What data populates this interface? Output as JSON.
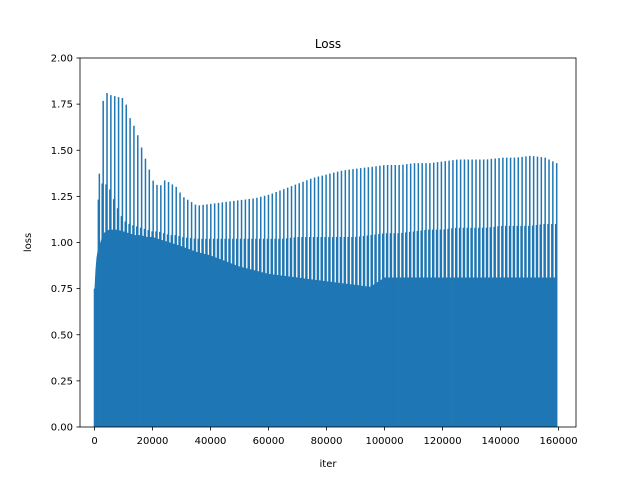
{
  "chart_data": {
    "type": "line",
    "title": "Loss",
    "xlabel": "iter",
    "ylabel": "loss",
    "xlim": [
      -5000,
      166000
    ],
    "ylim": [
      0,
      2.0
    ],
    "x_ticks": [
      0,
      20000,
      40000,
      60000,
      80000,
      100000,
      120000,
      140000,
      160000
    ],
    "x_tick_labels": [
      "0",
      "20000",
      "40000",
      "60000",
      "80000",
      "100000",
      "120000",
      "140000",
      "160000"
    ],
    "y_ticks": [
      0.0,
      0.25,
      0.5,
      0.75,
      1.0,
      1.25,
      1.5,
      1.75,
      2.0
    ],
    "y_tick_labels": [
      "0.00",
      "0.25",
      "0.50",
      "0.75",
      "1.00",
      "1.25",
      "1.50",
      "1.75",
      "2.00"
    ],
    "grid": false,
    "series": [
      {
        "color": "#1f77b4",
        "min_value": 0.0,
        "x_range": [
          0,
          159000
        ],
        "envelope_x": [
          0,
          500,
          1000,
          2000,
          3000,
          5000,
          7500,
          10000,
          12000,
          14000,
          16000,
          18000,
          20000,
          22000,
          24000,
          26000,
          28000,
          30000,
          35000,
          40000,
          45000,
          50000,
          55000,
          60000,
          65000,
          70000,
          75000,
          80000,
          85000,
          90000,
          95000,
          100000,
          105000,
          110000,
          115000,
          120000,
          125000,
          130000,
          135000,
          140000,
          145000,
          150000,
          155000,
          159000
        ],
        "peak_values": [
          0.75,
          1.24,
          1.23,
          1.67,
          1.82,
          1.8,
          1.79,
          1.78,
          1.67,
          1.61,
          1.51,
          1.42,
          1.33,
          1.3,
          1.34,
          1.32,
          1.3,
          1.25,
          1.2,
          1.21,
          1.22,
          1.23,
          1.24,
          1.26,
          1.29,
          1.32,
          1.35,
          1.37,
          1.39,
          1.4,
          1.41,
          1.42,
          1.42,
          1.43,
          1.43,
          1.44,
          1.45,
          1.45,
          1.45,
          1.46,
          1.46,
          1.47,
          1.46,
          1.43
        ],
        "upper_band": [
          0.75,
          1.0,
          1.2,
          1.3,
          1.33,
          1.3,
          1.2,
          1.12,
          1.1,
          1.09,
          1.08,
          1.07,
          1.06,
          1.06,
          1.05,
          1.04,
          1.04,
          1.03,
          1.02,
          1.02,
          1.02,
          1.02,
          1.02,
          1.02,
          1.02,
          1.03,
          1.03,
          1.03,
          1.03,
          1.03,
          1.04,
          1.05,
          1.05,
          1.06,
          1.07,
          1.07,
          1.08,
          1.08,
          1.08,
          1.09,
          1.09,
          1.09,
          1.1,
          1.1
        ],
        "solid_fill_top": [
          0.75,
          0.9,
          0.95,
          1.0,
          1.05,
          1.07,
          1.07,
          1.06,
          1.05,
          1.04,
          1.04,
          1.03,
          1.03,
          1.02,
          1.01,
          1.0,
          0.99,
          0.98,
          0.95,
          0.93,
          0.9,
          0.87,
          0.85,
          0.83,
          0.82,
          0.81,
          0.8,
          0.79,
          0.78,
          0.77,
          0.76,
          0.81,
          0.81,
          0.81,
          0.81,
          0.81,
          0.81,
          0.81,
          0.81,
          0.81,
          0.81,
          0.81,
          0.81,
          0.81
        ]
      }
    ]
  }
}
